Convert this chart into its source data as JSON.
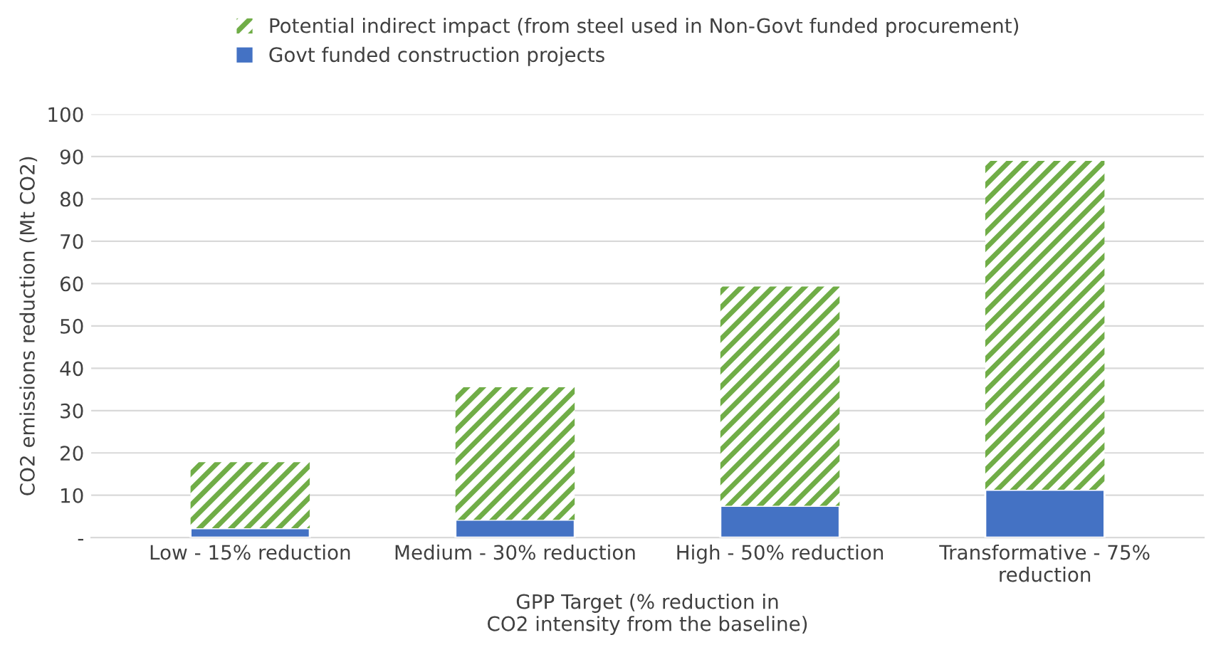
{
  "chart_data": {
    "type": "bar",
    "stacked": true,
    "categories": [
      "Low - 15% reduction",
      "Medium - 30% reduction",
      "High - 50% reduction",
      "Transformative - 75%\nreduction"
    ],
    "series": [
      {
        "name": "Govt funded construction projects",
        "color": "#4472c4",
        "values": [
          2.2,
          4.2,
          7.5,
          11.3
        ]
      },
      {
        "name": "Potential indirect impact (from steel used in Non-Govt funded procurement)",
        "color": "#70ad47",
        "values": [
          15.6,
          31.3,
          51.8,
          77.7
        ]
      }
    ],
    "xlabel": "GPP Target (% reduction in\nCO2 intensity from the baseline)",
    "ylabel": "CO2 emissions reduction (Mt CO2)",
    "ylim": [
      0,
      100
    ],
    "yticks": [
      {
        "value": 0,
        "label": "-"
      },
      10,
      20,
      30,
      40,
      50,
      60,
      70,
      80,
      90,
      100
    ],
    "grid": "y",
    "legend": "top"
  }
}
